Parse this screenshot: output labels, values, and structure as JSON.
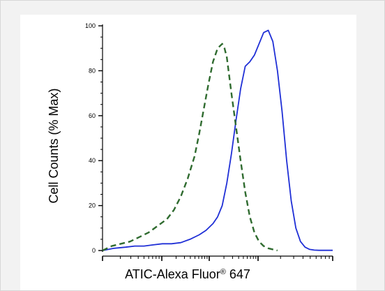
{
  "chart_data": {
    "type": "line",
    "title": "",
    "xlabel": "ATIC-Alexa Fluor",
    "xlabel_mark": "®",
    "xlabel_suffix": " 647",
    "ylabel": "Cell Counts (% Max)",
    "x_scale": "log",
    "ylim": [
      0,
      100
    ],
    "y_ticks": [
      0,
      20,
      40,
      60,
      80,
      100
    ],
    "x_tick_labels": [],
    "legend": false,
    "grid": false,
    "series": [
      {
        "color": "#1f2fd6",
        "line_style": "solid",
        "x": [
          0,
          5,
          10,
          14,
          18,
          22,
          26,
          30,
          34,
          38,
          42,
          45,
          48,
          50,
          52,
          54,
          56,
          58,
          60,
          62,
          64,
          66,
          68,
          70,
          72,
          74,
          76,
          78,
          80,
          82,
          84,
          86,
          88,
          90,
          92,
          94,
          96,
          98,
          100
        ],
        "y": [
          0,
          1,
          1.5,
          2,
          2,
          2.5,
          3,
          3,
          3.5,
          5,
          7,
          9,
          12,
          15,
          20,
          30,
          43,
          58,
          72,
          82,
          84,
          87,
          92,
          97,
          98,
          93,
          80,
          62,
          40,
          22,
          10,
          4,
          1.5,
          0.5,
          0.2,
          0.1,
          0.1,
          0.1,
          0.1
        ]
      },
      {
        "color": "#2f6b2f",
        "line_style": "dashed",
        "x": [
          0,
          4,
          8,
          12,
          16,
          20,
          24,
          28,
          31,
          34,
          37,
          40,
          42,
          44,
          46,
          48,
          50,
          52,
          53,
          54,
          55,
          56,
          58,
          60,
          62,
          64,
          66,
          68,
          70,
          72,
          74,
          76
        ],
        "y": [
          0,
          2,
          3,
          4,
          6,
          8,
          11,
          14,
          18,
          24,
          32,
          42,
          52,
          63,
          74,
          84,
          90,
          92,
          90,
          86,
          78,
          70,
          55,
          40,
          26,
          15,
          8,
          4,
          2,
          1,
          0.5,
          0
        ]
      }
    ]
  }
}
